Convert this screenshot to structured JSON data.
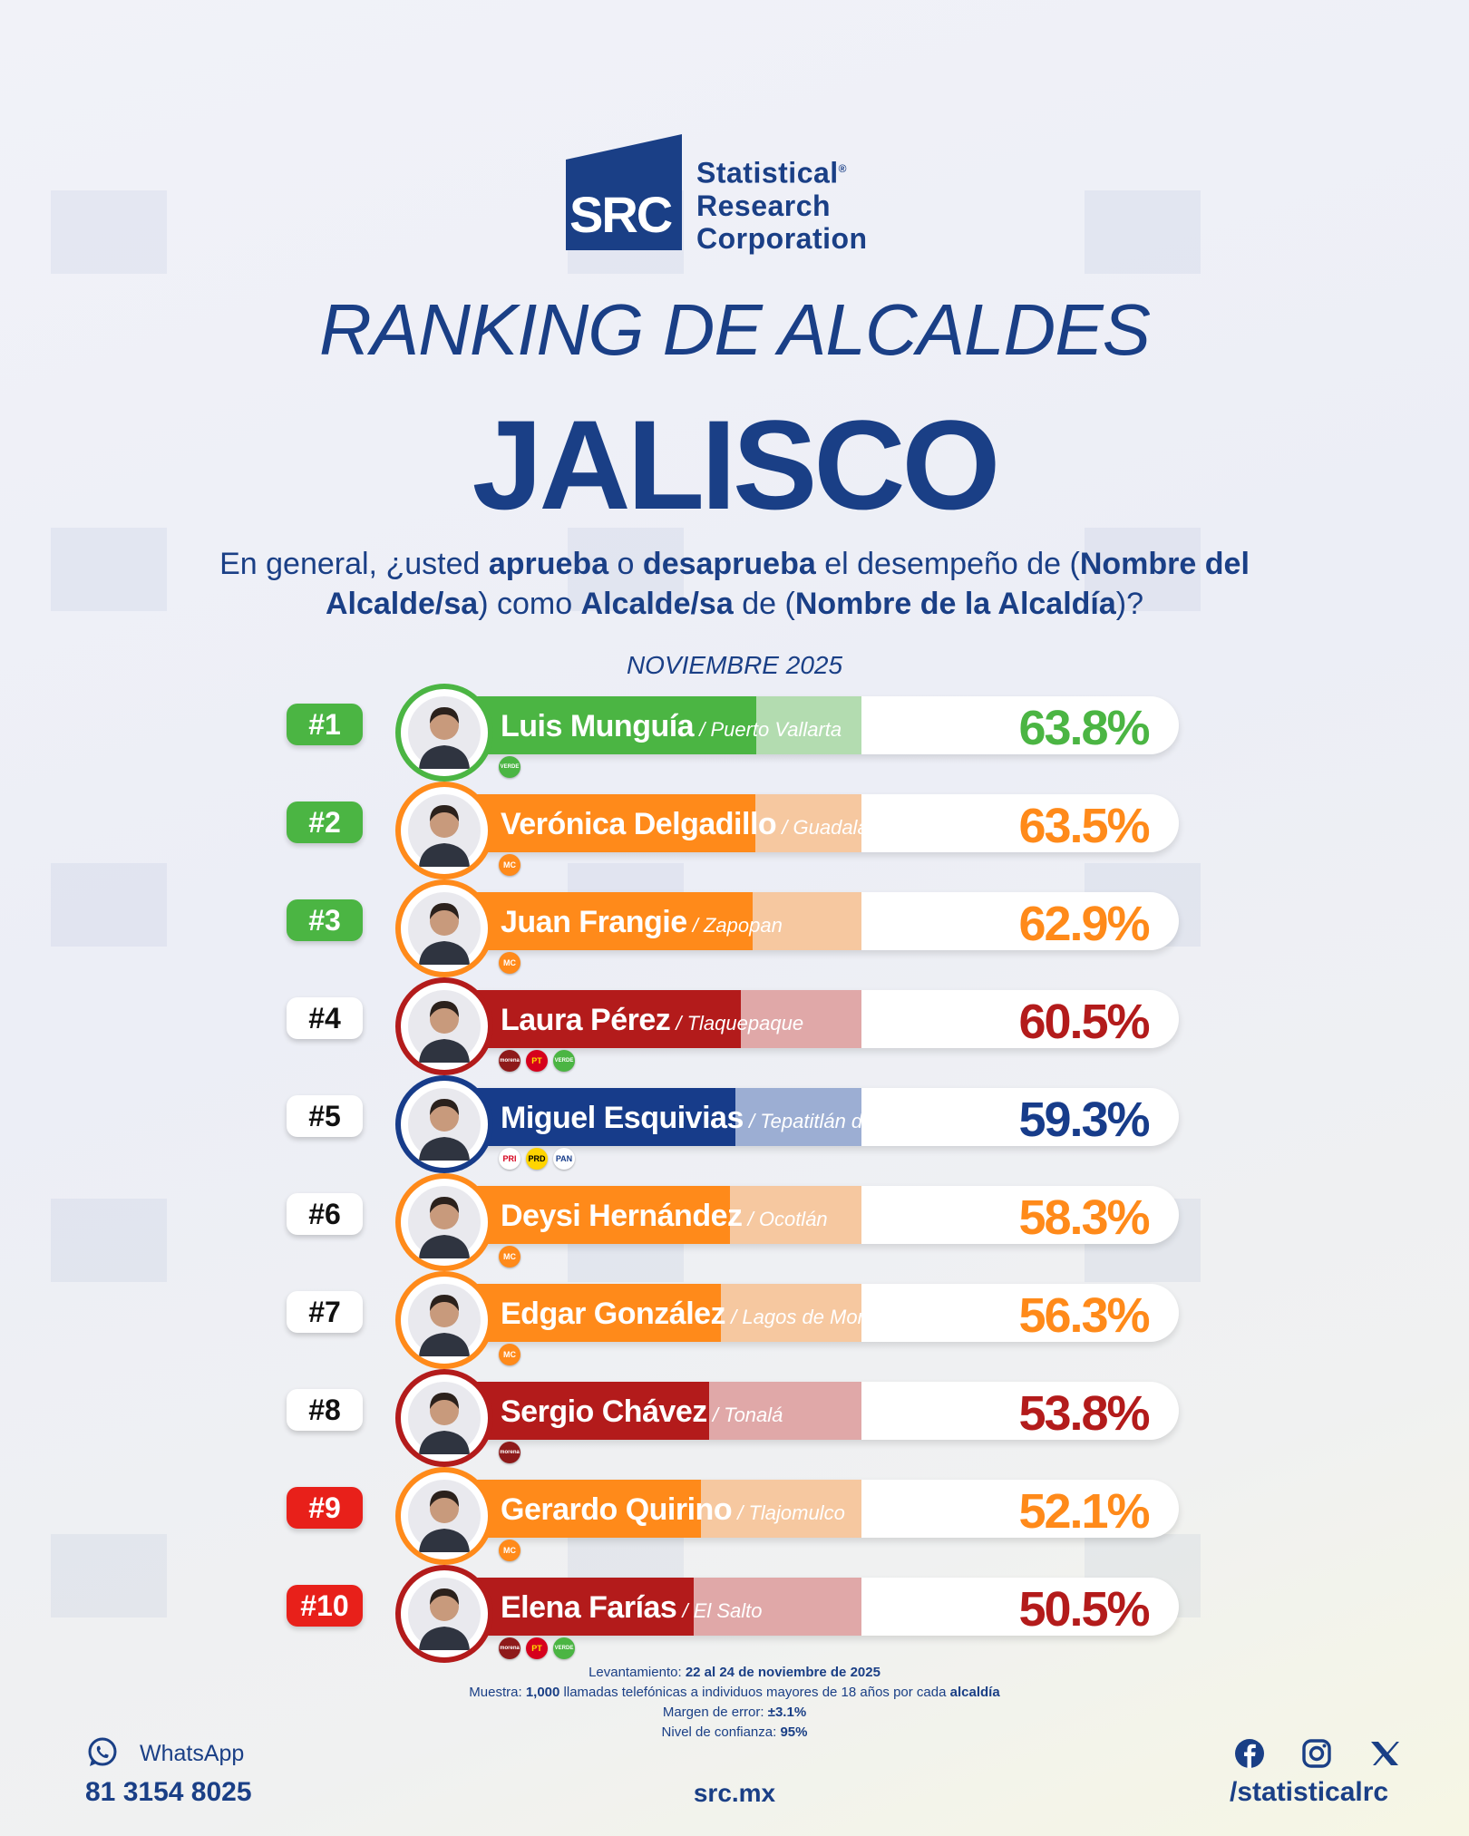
{
  "logo": {
    "abbr": "SRC",
    "name_line1": "Statistical",
    "name_line2": "Research",
    "name_line3": "Corporation",
    "reg": "®"
  },
  "header": {
    "subtitle": "RANKING DE ALCALDES",
    "title": "JALISCO",
    "question_parts": [
      "En general, ¿usted ",
      "aprueba",
      " o ",
      "desaprueba",
      " el desempeño de (",
      "Nombre del Alcalde/sa",
      ") como ",
      "Alcalde/sa",
      " de (",
      "Nombre de la Alcaldía",
      ")?"
    ],
    "period": "NOVIEMBRE 2025"
  },
  "colors": {
    "green": "#4bb543",
    "orange": "#ff8a1a",
    "red": "#b31b1b",
    "blue": "#173c8a",
    "rank_red": "#e8201a",
    "text_blue": "#1a3f86"
  },
  "chart_data": {
    "type": "bar",
    "orientation": "horizontal",
    "unit": "%",
    "xlim": [
      0,
      100
    ],
    "title": "RANKING DE ALCALDES JALISCO",
    "categories": [
      "Luis Munguía",
      "Verónica Delgadillo",
      "Juan Frangie",
      "Laura Pérez",
      "Miguel Esquivias",
      "Deysi Hernández",
      "Edgar González",
      "Sergio Chávez",
      "Gerardo Quirino",
      "Elena Farías"
    ],
    "values": [
      63.8,
      63.5,
      62.9,
      60.5,
      59.3,
      58.3,
      56.3,
      53.8,
      52.1,
      50.5
    ],
    "rows": [
      {
        "rank": "#1",
        "name": "Luis Munguía",
        "municipality": "Puerto Vallarta",
        "value": 63.8,
        "label": "63.8%",
        "color": "#4bb543",
        "light": "#b3dcb0",
        "rank_style": "green",
        "parties": [
          {
            "label": "VERDE",
            "bg": "#4bb543",
            "fg": "#ffffff"
          }
        ]
      },
      {
        "rank": "#2",
        "name": "Verónica Delgadillo",
        "municipality": "Guadalajara",
        "value": 63.5,
        "label": "63.5%",
        "color": "#ff8a1a",
        "light": "#f6c8a0",
        "rank_style": "green",
        "parties": [
          {
            "label": "MC",
            "bg": "#ff8a1a",
            "fg": "#ffffff"
          }
        ]
      },
      {
        "rank": "#3",
        "name": "Juan Frangie",
        "municipality": "Zapopan",
        "value": 62.9,
        "label": "62.9%",
        "color": "#ff8a1a",
        "light": "#f6c8a0",
        "rank_style": "green",
        "parties": [
          {
            "label": "MC",
            "bg": "#ff8a1a",
            "fg": "#ffffff"
          }
        ]
      },
      {
        "rank": "#4",
        "name": "Laura Pérez",
        "municipality": "Tlaquepaque",
        "value": 60.5,
        "label": "60.5%",
        "color": "#b31b1b",
        "light": "#e0a8a8",
        "rank_style": "white",
        "parties": [
          {
            "label": "morena",
            "bg": "#8e1a1a",
            "fg": "#ffffff"
          },
          {
            "label": "PT",
            "bg": "#d6001c",
            "fg": "#ffe100"
          },
          {
            "label": "VERDE",
            "bg": "#4bb543",
            "fg": "#ffffff"
          }
        ]
      },
      {
        "rank": "#5",
        "name": "Miguel Esquivias",
        "municipality": "Tepatitlán de Morelos",
        "value": 59.3,
        "label": "59.3%",
        "color": "#173c8a",
        "light": "#9caed3",
        "rank_style": "white",
        "parties": [
          {
            "label": "PRI",
            "bg": "#ffffff",
            "fg": "#d6001c"
          },
          {
            "label": "PRD",
            "bg": "#ffd400",
            "fg": "#000000"
          },
          {
            "label": "PAN",
            "bg": "#ffffff",
            "fg": "#173c8a"
          }
        ]
      },
      {
        "rank": "#6",
        "name": "Deysi Hernández",
        "municipality": "Ocotlán",
        "value": 58.3,
        "label": "58.3%",
        "color": "#ff8a1a",
        "light": "#f6c8a0",
        "rank_style": "white",
        "parties": [
          {
            "label": "MC",
            "bg": "#ff8a1a",
            "fg": "#ffffff"
          }
        ]
      },
      {
        "rank": "#7",
        "name": "Edgar González",
        "municipality": "Lagos de Moreno",
        "value": 56.3,
        "label": "56.3%",
        "color": "#ff8a1a",
        "light": "#f6c8a0",
        "rank_style": "white",
        "parties": [
          {
            "label": "MC",
            "bg": "#ff8a1a",
            "fg": "#ffffff"
          }
        ]
      },
      {
        "rank": "#8",
        "name": "Sergio Chávez",
        "municipality": "Tonalá",
        "value": 53.8,
        "label": "53.8%",
        "color": "#b31b1b",
        "light": "#e0a8a8",
        "rank_style": "white",
        "parties": [
          {
            "label": "morena",
            "bg": "#8e1a1a",
            "fg": "#ffffff"
          }
        ]
      },
      {
        "rank": "#9",
        "name": "Gerardo Quirino",
        "municipality": "Tlajomulco",
        "value": 52.1,
        "label": "52.1%",
        "color": "#ff8a1a",
        "light": "#f6c8a0",
        "rank_style": "red",
        "parties": [
          {
            "label": "MC",
            "bg": "#ff8a1a",
            "fg": "#ffffff"
          }
        ]
      },
      {
        "rank": "#10",
        "name": "Elena Farías",
        "municipality": "El Salto",
        "value": 50.5,
        "label": "50.5%",
        "color": "#b31b1b",
        "light": "#e0a8a8",
        "rank_style": "red",
        "parties": [
          {
            "label": "morena",
            "bg": "#8e1a1a",
            "fg": "#ffffff"
          },
          {
            "label": "PT",
            "bg": "#d6001c",
            "fg": "#ffe100"
          },
          {
            "label": "VERDE",
            "bg": "#4bb543",
            "fg": "#ffffff"
          }
        ]
      }
    ]
  },
  "methodology": {
    "survey_label": "Levantamiento: ",
    "survey_value": "22 al 24 de noviembre de 2025",
    "sample_label": "Muestra: ",
    "sample_value": "1,000",
    "sample_text": " llamadas telefónicas a individuos mayores de 18 años por cada ",
    "sample_unit": "alcaldía",
    "margin_label": "Margen de error: ",
    "margin_value": "±3.1%",
    "confidence_label": "Nivel de confianza: ",
    "confidence_value": "95%"
  },
  "footer": {
    "whatsapp_label": "WhatsApp",
    "whatsapp_number": "81 3154 8025",
    "website": "src.mx",
    "social_handle": "/statisticalrc",
    "social_icons": [
      "facebook-icon",
      "instagram-icon",
      "x-icon"
    ]
  }
}
